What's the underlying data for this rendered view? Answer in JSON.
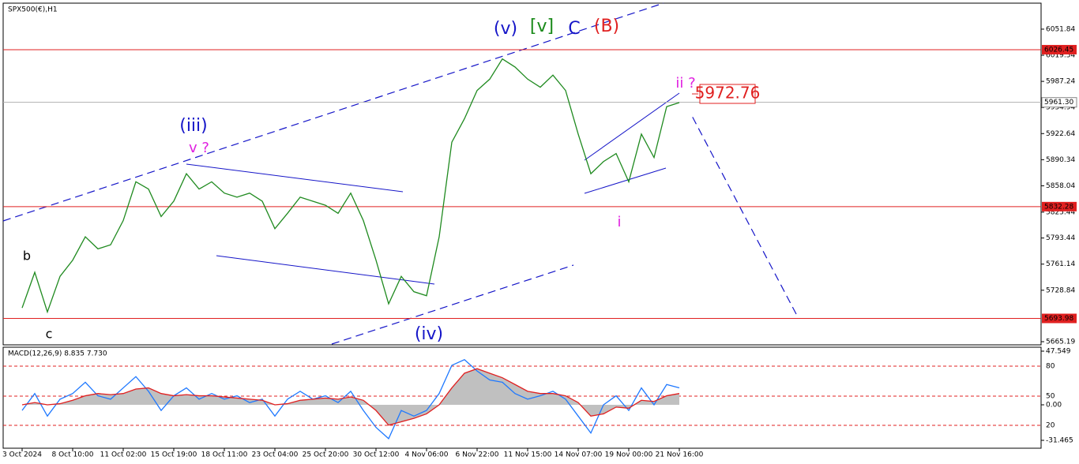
{
  "chart_data": [
    {
      "type": "line",
      "title": "SPX500(€),H1",
      "categories": [
        "3 Oct 2024",
        null,
        null,
        null,
        "8 Oct 10:00",
        null,
        null,
        null,
        "11 Oct 02:00",
        null,
        null,
        null,
        "15 Oct 19:00",
        null,
        null,
        null,
        "18 Oct 11:00",
        null,
        null,
        null,
        "23 Oct 04:00",
        null,
        null,
        null,
        "25 Oct 20:00",
        null,
        null,
        null,
        "30 Oct 12:00",
        null,
        null,
        null,
        "4 Nov 06:00",
        null,
        null,
        null,
        "6 Nov 22:00",
        null,
        null,
        null,
        "11 Nov 15:00",
        null,
        null,
        null,
        "14 Nov 07:00",
        null,
        null,
        null,
        "19 Nov 00:00",
        null,
        null,
        null,
        "21 Nov 16:00"
      ],
      "series": [
        {
          "color": "#1f8a1f",
          "values": [
            5707,
            5751,
            5702,
            5746,
            5766,
            5795,
            5780,
            5785,
            5815,
            5863,
            5854,
            5820,
            5839,
            5873,
            5854,
            5863,
            5849,
            5844,
            5849,
            5839,
            5805,
            5824,
            5844,
            5839,
            5834,
            5824,
            5849,
            5815,
            5766,
            5712,
            5746,
            5727,
            5722,
            5795,
            5912,
            5941,
            5976,
            5990,
            6015,
            6005,
            5990,
            5980,
            5995,
            5976,
            5922,
            5873,
            5888,
            5898,
            5863,
            5922,
            5893,
            5956,
            5961
          ]
        }
      ],
      "ylim": [
        5660.3,
        6084.0
      ],
      "yticks": [
        6051.84,
        6019.54,
        5987.24,
        5954.94,
        5922.64,
        5890.34,
        5858.04,
        5825.44,
        5793.44,
        5761.14,
        5728.84,
        5665.19
      ],
      "levels": [
        6026.45,
        5832.28,
        5693.98
      ],
      "level_color": "#e02020",
      "current_price": {
        "value": 5961.3,
        "label": "5961.30"
      },
      "annotations": [
        {
          "text": "(v)",
          "color": "#1515c8"
        },
        {
          "text": "[v]",
          "color": "#1a8a1a"
        },
        {
          "text": "C",
          "color": "#1515c8"
        },
        {
          "text": "(B)",
          "color": "#e02020"
        },
        {
          "text": "(iii)",
          "color": "#1515c8"
        },
        {
          "text": "v ?",
          "color": "#e020e0"
        },
        {
          "text": "b",
          "color": "#000000"
        },
        {
          "text": "c",
          "color": "#000000"
        },
        {
          "text": "(iv)",
          "color": "#1515c8"
        },
        {
          "text": "i",
          "color": "#e020e0"
        },
        {
          "text": "ii ?",
          "color": "#e020e0"
        },
        {
          "text": "5972.76",
          "color": "#e02020"
        }
      ]
    },
    {
      "type": "line",
      "title": "MACD(12,26,9) 8.835 7.730",
      "series": [
        {
          "color": "#1e78ff",
          "values": [
            -5,
            10,
            -10,
            5,
            10,
            20,
            8,
            5,
            15,
            25,
            12,
            -5,
            8,
            15,
            5,
            10,
            5,
            8,
            2,
            5,
            -10,
            5,
            12,
            5,
            8,
            2,
            12,
            -5,
            -20,
            -30,
            -5,
            -10,
            -5,
            10,
            35,
            40,
            30,
            22,
            20,
            10,
            5,
            8,
            12,
            5,
            -10,
            -25,
            0,
            8,
            -5,
            15,
            0,
            18,
            15
          ]
        },
        {
          "color": "#e02020",
          "values": [
            0,
            2,
            0,
            1,
            4,
            8,
            10,
            9,
            10,
            14,
            15,
            10,
            8,
            9,
            8,
            8,
            7,
            6,
            5,
            4,
            0,
            1,
            4,
            5,
            6,
            5,
            7,
            4,
            -5,
            -18,
            -15,
            -12,
            -8,
            0,
            15,
            28,
            32,
            28,
            24,
            18,
            12,
            10,
            10,
            8,
            2,
            -10,
            -8,
            -2,
            -3,
            4,
            3,
            8,
            10
          ]
        }
      ],
      "ylim": [
        -31.465,
        47.549
      ],
      "yticks": [
        47.549,
        {
          "value": 34.3,
          "label": "80"
        },
        {
          "value": 7.7,
          "label": "50"
        },
        {
          "value": 0,
          "label": "0.00"
        },
        {
          "value": -18.2,
          "label": "20"
        },
        -31.465
      ]
    }
  ]
}
